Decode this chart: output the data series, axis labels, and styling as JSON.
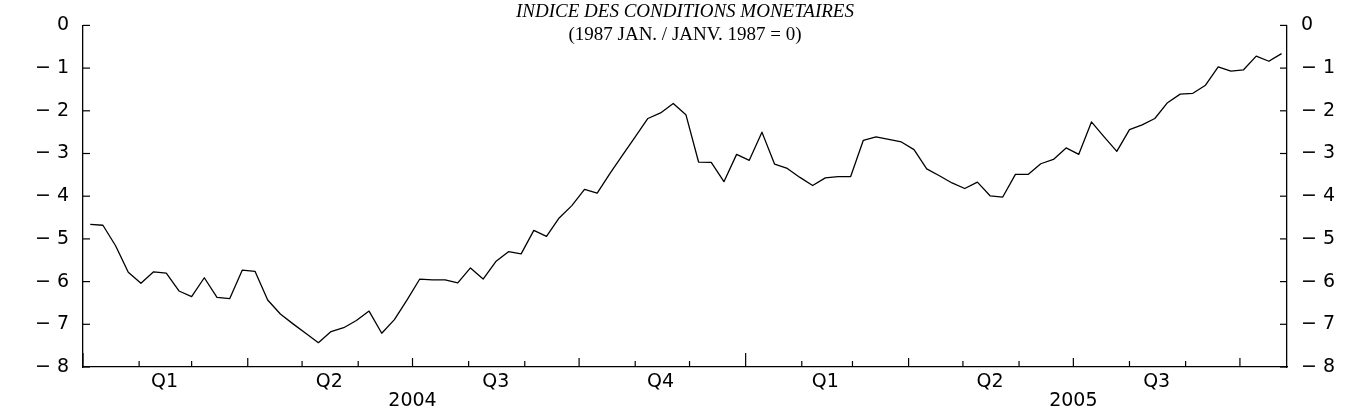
{
  "chart_data": {
    "type": "line",
    "title": "INDICE DES CONDITIONS MONETAIRES",
    "subtitle": "(1987 JAN. / JANV. 1987 = 0)",
    "x": [
      "2004-01-05",
      "2004-01-12",
      "2004-01-19",
      "2004-01-26",
      "2004-02-02",
      "2004-02-09",
      "2004-02-16",
      "2004-02-23",
      "2004-03-01",
      "2004-03-08",
      "2004-03-15",
      "2004-03-22",
      "2004-03-29",
      "2004-04-05",
      "2004-04-12",
      "2004-04-19",
      "2004-04-26",
      "2004-05-03",
      "2004-05-10",
      "2004-05-17",
      "2004-05-24",
      "2004-05-31",
      "2004-06-07",
      "2004-06-14",
      "2004-06-21",
      "2004-06-28",
      "2004-07-05",
      "2004-07-12",
      "2004-07-19",
      "2004-07-26",
      "2004-08-02",
      "2004-08-09",
      "2004-08-16",
      "2004-08-23",
      "2004-08-30",
      "2004-09-06",
      "2004-09-13",
      "2004-09-20",
      "2004-09-27",
      "2004-10-04",
      "2004-10-11",
      "2004-10-18",
      "2004-10-25",
      "2004-11-01",
      "2004-11-08",
      "2004-11-15",
      "2004-11-22",
      "2004-11-29",
      "2004-12-06",
      "2004-12-13",
      "2004-12-20",
      "2004-12-27",
      "2005-01-03",
      "2005-01-10",
      "2005-01-17",
      "2005-01-24",
      "2005-01-31",
      "2005-02-07",
      "2005-02-14",
      "2005-02-21",
      "2005-02-28",
      "2005-03-07",
      "2005-03-14",
      "2005-03-21",
      "2005-03-28",
      "2005-04-04",
      "2005-04-11",
      "2005-04-18",
      "2005-04-25",
      "2005-05-02",
      "2005-05-09",
      "2005-05-16",
      "2005-05-23",
      "2005-05-30",
      "2005-06-06",
      "2005-06-13",
      "2005-06-20",
      "2005-06-27",
      "2005-07-04",
      "2005-07-11",
      "2005-07-18",
      "2005-07-25",
      "2005-08-01",
      "2005-08-08",
      "2005-08-15",
      "2005-08-22",
      "2005-08-29",
      "2005-09-05",
      "2005-09-12",
      "2005-09-19",
      "2005-09-26",
      "2005-10-03",
      "2005-10-10",
      "2005-10-17",
      "2005-10-24"
    ],
    "series": [
      {
        "color": "#000000",
        "values": [
          -4.66,
          -4.68,
          -5.16,
          -5.78,
          -6.04,
          -5.77,
          -5.8,
          -6.22,
          -6.35,
          -5.91,
          -6.37,
          -6.4,
          -5.73,
          -5.76,
          -6.43,
          -6.76,
          -6.99,
          -7.21,
          -7.43,
          -7.17,
          -7.08,
          -6.91,
          -6.69,
          -7.21,
          -6.89,
          -6.43,
          -5.94,
          -5.96,
          -5.96,
          -6.03,
          -5.68,
          -5.94,
          -5.53,
          -5.3,
          -5.35,
          -4.8,
          -4.94,
          -4.51,
          -4.22,
          -3.84,
          -3.93,
          -3.47,
          -3.04,
          -2.61,
          -2.18,
          -2.05,
          -1.83,
          -2.09,
          -3.2,
          -3.21,
          -3.66,
          -3.02,
          -3.16,
          -2.5,
          -3.25,
          -3.35,
          -3.56,
          -3.75,
          -3.57,
          -3.54,
          -3.54,
          -2.69,
          -2.61,
          -2.67,
          -2.73,
          -2.91,
          -3.36,
          -3.52,
          -3.69,
          -3.82,
          -3.67,
          -3.99,
          -4.02,
          -3.49,
          -3.49,
          -3.24,
          -3.14,
          -2.87,
          -3.02,
          -2.26,
          -2.61,
          -2.95,
          -2.44,
          -2.33,
          -2.18,
          -1.81,
          -1.61,
          -1.59,
          -1.4,
          -0.97,
          -1.07,
          -1.04,
          -0.72,
          -0.84,
          -0.66
        ]
      }
    ],
    "xlim": [
      "2004-01-01",
      "2005-10-27"
    ],
    "xticks": [
      {
        "value": "2004-01-01",
        "label": null
      },
      {
        "value": "2004-02-01",
        "label": null
      },
      {
        "value": "2004-02-15",
        "label": "Q1"
      },
      {
        "value": "2004-03-01",
        "label": null
      },
      {
        "value": "2004-04-01",
        "label": null
      },
      {
        "value": "2004-05-01",
        "label": null
      },
      {
        "value": "2004-05-16",
        "label": "Q2"
      },
      {
        "value": "2004-06-01",
        "label": null
      },
      {
        "value": "2004-07-01",
        "label": null
      },
      {
        "value": "2004-08-01",
        "label": null
      },
      {
        "value": "2004-08-16",
        "label": "Q3"
      },
      {
        "value": "2004-09-01",
        "label": null
      },
      {
        "value": "2004-10-01",
        "label": null
      },
      {
        "value": "2004-11-01",
        "label": null
      },
      {
        "value": "2004-11-15",
        "label": "Q4"
      },
      {
        "value": "2004-12-01",
        "label": null
      },
      {
        "value": "2005-01-01",
        "label": null
      },
      {
        "value": "2005-02-01",
        "label": null
      },
      {
        "value": "2005-02-14",
        "label": "Q1"
      },
      {
        "value": "2005-03-01",
        "label": null
      },
      {
        "value": "2005-04-01",
        "label": null
      },
      {
        "value": "2005-05-01",
        "label": null
      },
      {
        "value": "2005-05-16",
        "label": "Q2"
      },
      {
        "value": "2005-06-01",
        "label": null
      },
      {
        "value": "2005-07-01",
        "label": null
      },
      {
        "value": "2005-08-01",
        "label": null
      },
      {
        "value": "2005-08-16",
        "label": "Q3"
      },
      {
        "value": "2005-09-01",
        "label": null
      },
      {
        "value": "2005-10-01",
        "label": null
      }
    ],
    "ylim": [
      -8,
      0
    ],
    "yticks": [
      -8,
      -7,
      -6,
      -5,
      -4,
      -3,
      -2,
      -1,
      0
    ],
    "y2lim": [
      -8,
      0
    ],
    "y2ticks": [
      -8,
      -7,
      -6,
      -5,
      -4,
      -3,
      -2,
      -1,
      0
    ],
    "annotations": [
      "2004",
      "2005"
    ],
    "marker": "none",
    "line_style": "solid"
  }
}
